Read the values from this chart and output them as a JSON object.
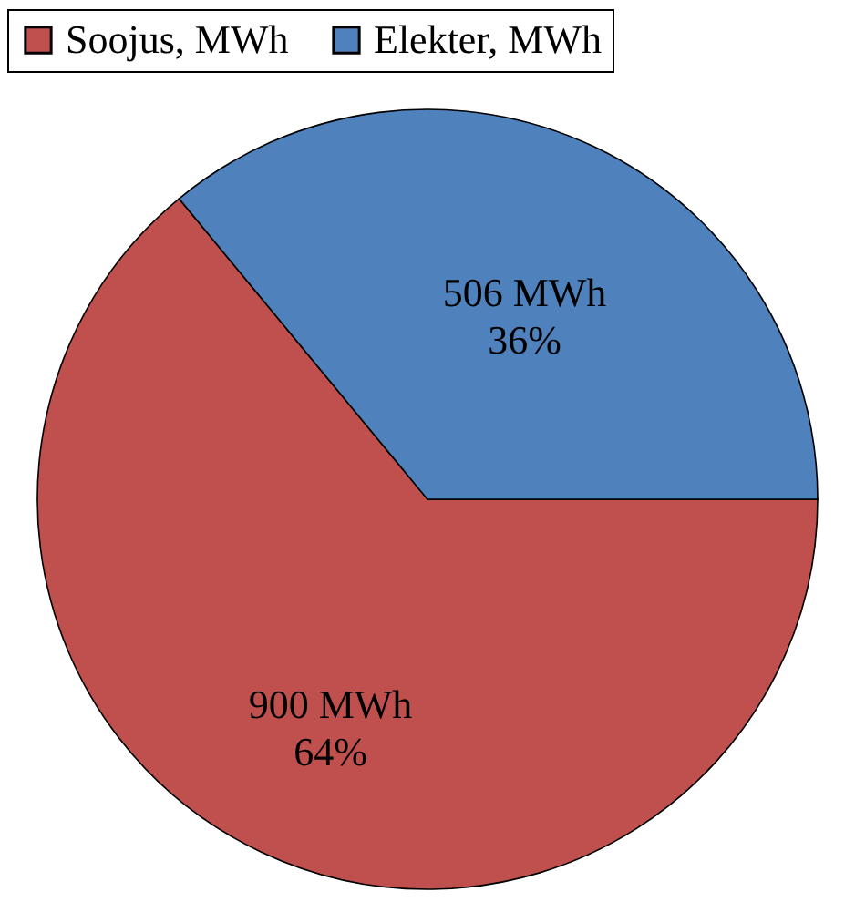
{
  "chart_data": {
    "type": "pie",
    "categories": [
      "Soojus, MWh",
      "Elekter, MWh"
    ],
    "values": [
      900,
      506
    ],
    "colors": [
      "#c0504d",
      "#4f81bd"
    ],
    "value_labels": [
      "900 MWh\n64%",
      "506 MWh\n36%"
    ],
    "legend": "top"
  }
}
